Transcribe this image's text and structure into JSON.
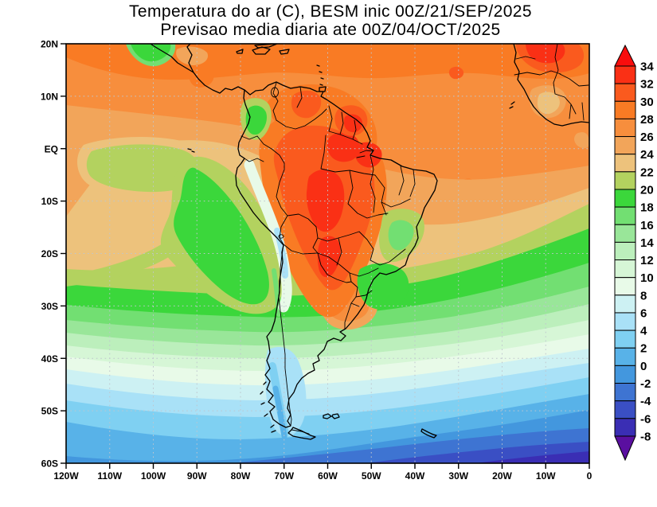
{
  "title": {
    "line1": "Temperatura do ar (C), BESM inic 00Z/21/SEP/2025",
    "line2": "Previsao media diaria ate 00Z/04/OCT/2025"
  },
  "axes": {
    "lon_ticks": [
      "120W",
      "110W",
      "100W",
      "90W",
      "80W",
      "70W",
      "60W",
      "50W",
      "40W",
      "30W",
      "20W",
      "10W",
      "0"
    ],
    "lat_ticks": [
      "20N",
      "10N",
      "EQ",
      "10S",
      "20S",
      "30S",
      "40S",
      "50S",
      "60S"
    ]
  },
  "colorbar": {
    "levels": [
      "34",
      "32",
      "30",
      "28",
      "26",
      "24",
      "22",
      "20",
      "18",
      "16",
      "14",
      "12",
      "10",
      "8",
      "6",
      "4",
      "2",
      "0",
      "-2",
      "-4",
      "-6",
      "-8"
    ]
  },
  "palette": {
    "gt34": "#F90D0D",
    "32": "#FA3015",
    "30": "#FA5A1E",
    "28": "#F97B24",
    "26": "#F78E3D",
    "24": "#F2A55A",
    "22": "#EDC27C",
    "20": "#B3D25F",
    "18": "#3BD73B",
    "16": "#72DF72",
    "14": "#99E699",
    "12": "#BCEFBC",
    "10": "#D6F6D6",
    "8": "#E8FAE8",
    "6": "#CDF1F3",
    "4": "#A9E1F7",
    "2": "#7FD0F2",
    "0": "#58B2E8",
    "-2": "#4397DE",
    "-4": "#3E74D2",
    "-6": "#3A4FC4",
    "-8": "#3A2EB4",
    "ltm8": "#5A0FA0"
  },
  "style": {
    "grid_color": "#BFC6CE",
    "frame_color": "#000000",
    "background": "#FFFFFF",
    "text_color": "#000000"
  },
  "chart_data": {
    "type": "filled_contour_map",
    "variable": "Temperatura do ar (C)",
    "model": "BESM",
    "init_time": "00Z/21/SEP/2025",
    "statistic": "Previsao media diaria",
    "valid_until": "00Z/04/OCT/2025",
    "levels_c": [
      -8,
      -6,
      -4,
      -2,
      0,
      2,
      4,
      6,
      8,
      10,
      12,
      14,
      16,
      18,
      20,
      22,
      24,
      26,
      28,
      30,
      32,
      34
    ],
    "lon_domain": [
      "120W",
      "0"
    ],
    "lat_domain": [
      "60S",
      "20N"
    ],
    "colorbar_position": "right",
    "grid": "dotted 10-degree graticule"
  }
}
